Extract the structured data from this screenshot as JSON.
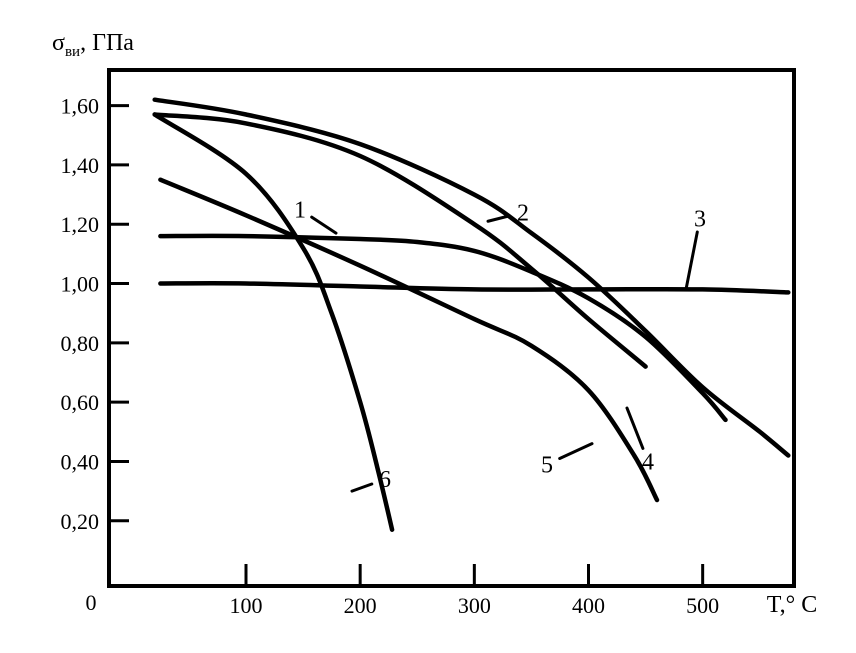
{
  "chart_data": {
    "type": "line",
    "ylabel_main": "σ",
    "ylabel_sub": "ви",
    "ylabel_unit": ", ГПа",
    "xlabel": "T,° C",
    "origin_label": "0",
    "xlim": [
      -20,
      580
    ],
    "ylim": [
      -0.02,
      1.72
    ],
    "x_ticks": [
      100,
      200,
      300,
      400,
      500
    ],
    "x_tick_labels": [
      "100",
      "200",
      "300",
      "400",
      "500"
    ],
    "y_ticks": [
      0.2,
      0.4,
      0.6,
      0.8,
      1.0,
      1.2,
      1.4,
      1.6
    ],
    "y_tick_labels": [
      "0,20",
      "0,40",
      "0,60",
      "0,80",
      "1,00",
      "1,20",
      "1,40",
      "1,60"
    ],
    "grid": false,
    "legend": "none",
    "series": [
      {
        "name": "1",
        "x": [
          25,
          100,
          200,
          250,
          300,
          350,
          400,
          450,
          500,
          520
        ],
        "y": [
          1.16,
          1.16,
          1.15,
          1.14,
          1.11,
          1.04,
          0.95,
          0.82,
          0.63,
          0.54
        ],
        "label_pos": [
          300,
          1.25
        ],
        "leader_to": [
          336,
          1.17
        ]
      },
      {
        "name": "2",
        "x": [
          20,
          100,
          200,
          300,
          350,
          400,
          450,
          500,
          550,
          575
        ],
        "y": [
          1.62,
          1.57,
          1.47,
          1.3,
          1.17,
          1.02,
          0.84,
          0.65,
          0.5,
          0.42
        ],
        "label_pos": [
          523,
          1.24
        ],
        "leader_to": [
          488,
          1.21
        ]
      },
      {
        "name": "3",
        "x": [
          25,
          100,
          200,
          300,
          400,
          500,
          575
        ],
        "y": [
          1.0,
          1.0,
          0.99,
          0.98,
          0.98,
          0.98,
          0.97
        ],
        "label_pos": [
          700,
          1.22
        ],
        "leader_to": [
          686,
          0.98
        ]
      },
      {
        "name": "4",
        "x": [
          20,
          100,
          200,
          300,
          350,
          400,
          450
        ],
        "y": [
          1.57,
          1.54,
          1.43,
          1.2,
          1.05,
          0.88,
          0.72
        ],
        "label_pos": [
          648,
          0.4
        ],
        "leader_to": [
          627,
          0.58
        ]
      },
      {
        "name": "5",
        "x": [
          25,
          100,
          200,
          300,
          350,
          400,
          440,
          460
        ],
        "y": [
          1.35,
          1.23,
          1.06,
          0.88,
          0.79,
          0.64,
          0.42,
          0.27
        ],
        "label_pos": [
          547,
          0.39
        ],
        "leader_to": [
          592,
          0.46
        ]
      },
      {
        "name": "6",
        "x": [
          20,
          100,
          150,
          175,
          200,
          215,
          228
        ],
        "y": [
          1.57,
          1.37,
          1.12,
          0.9,
          0.6,
          0.38,
          0.17
        ],
        "label_pos": [
          385,
          0.34
        ],
        "leader_to": [
          352,
          0.3
        ]
      }
    ]
  }
}
